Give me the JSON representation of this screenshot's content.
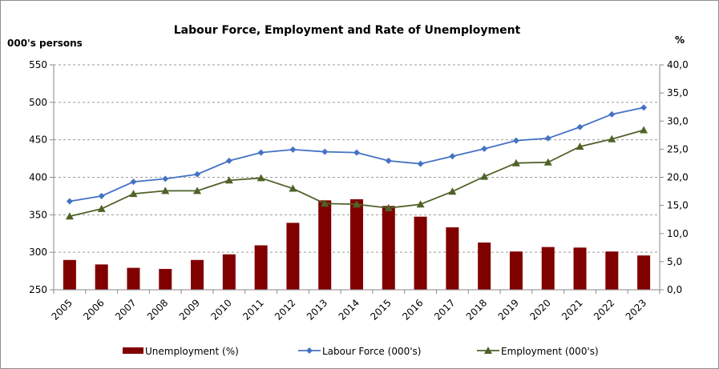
{
  "chart_data": {
    "type": "bar+line",
    "title": "Labour Force, Employment and Rate of Unemployment",
    "left_axis_label": "000's persons",
    "right_axis_label": "%",
    "categories": [
      "2005",
      "2006",
      "2007",
      "2008",
      "2009",
      "2010",
      "2011",
      "2012",
      "2013",
      "2014",
      "2015",
      "2016",
      "2017",
      "2018",
      "2019",
      "2020",
      "2021",
      "2022",
      "2023"
    ],
    "left_ylim": [
      250,
      550
    ],
    "left_ticks": [
      "250",
      "300",
      "350",
      "400",
      "450",
      "500",
      "550"
    ],
    "right_ylim": [
      0,
      40
    ],
    "right_ticks": [
      "0,0",
      "5,0",
      "10,0",
      "15,0",
      "20,0",
      "25,0",
      "30,0",
      "35,0",
      "40,0"
    ],
    "grid": true,
    "legend_position": "bottom",
    "series": [
      {
        "name": "Unemployment (%)",
        "kind": "bar",
        "axis": "right",
        "color": "#800000",
        "values": [
          5.3,
          4.5,
          3.9,
          3.7,
          5.3,
          6.3,
          7.9,
          11.9,
          15.9,
          16.1,
          14.9,
          13.0,
          11.1,
          8.4,
          6.8,
          7.6,
          7.5,
          6.8,
          6.1
        ]
      },
      {
        "name": "Labour Force (000's)",
        "kind": "line",
        "marker": "diamond",
        "axis": "left",
        "color": "#4472C4",
        "values": [
          368,
          375,
          394,
          398,
          404,
          422,
          433,
          437,
          434,
          433,
          422,
          418,
          428,
          438,
          449,
          452,
          467,
          484,
          493
        ]
      },
      {
        "name": "Employment (000's)",
        "kind": "line",
        "marker": "triangle",
        "axis": "left",
        "color": "#4F6228",
        "values": [
          348,
          358,
          378,
          382,
          382,
          396,
          399,
          385,
          365,
          364,
          359,
          364,
          381,
          401,
          419,
          420,
          441,
          451,
          463
        ]
      }
    ]
  }
}
